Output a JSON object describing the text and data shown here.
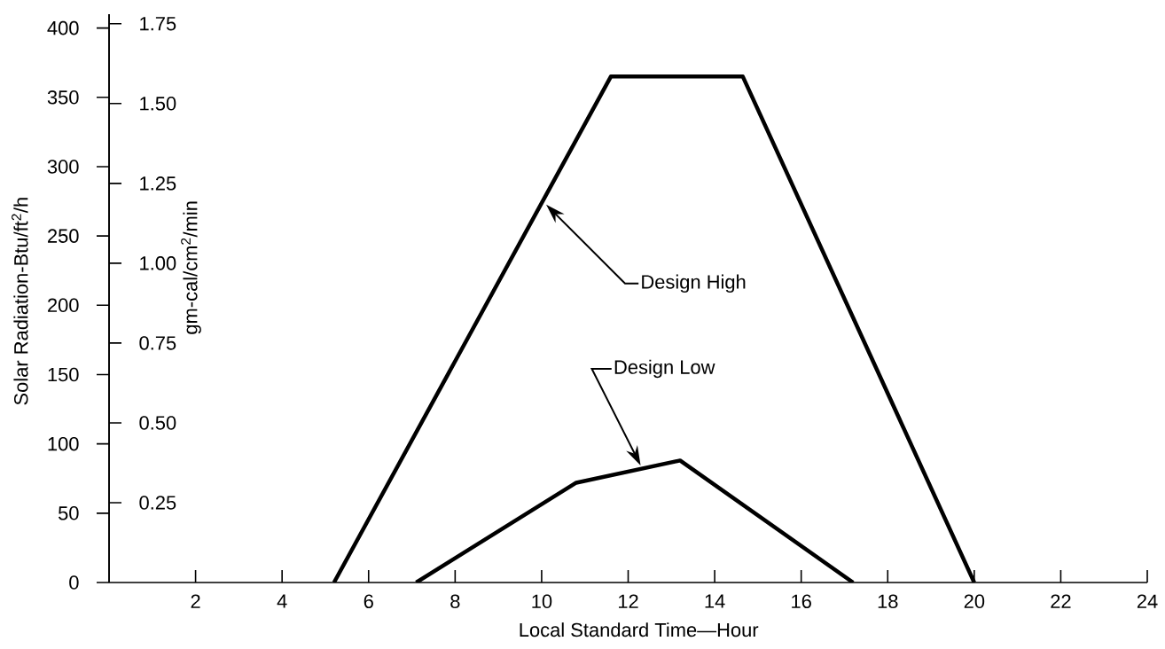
{
  "chart_data": {
    "type": "line",
    "xlabel": "Local Standard Time—Hour",
    "ylabel": "Solar Radiation-Btu/ft$^{2}$/h",
    "y2label": "gm-cal/cm$^{2}$/min",
    "xlim": [
      0,
      24
    ],
    "xticks": [
      2,
      4,
      6,
      8,
      10,
      12,
      14,
      16,
      18,
      20,
      22,
      24
    ],
    "ylim": [
      0,
      410
    ],
    "yticks": [
      0,
      50,
      100,
      150,
      200,
      250,
      300,
      350,
      400
    ],
    "y2lim": [
      0,
      1.78
    ],
    "y2ticks": [
      0.25,
      {
        "value": 0.5,
        "label": "0.50"
      },
      0.75,
      {
        "value": 1.0,
        "label": "1.00"
      },
      1.25,
      {
        "value": 1.5,
        "label": "1.50"
      },
      1.75
    ],
    "line_style": "solid",
    "series": [
      {
        "color": "#000000",
        "x": [
          5.2,
          11.6,
          14.65,
          20
        ],
        "values": [
          0,
          365,
          365,
          0
        ]
      },
      {
        "color": "#000000",
        "x": [
          7.1,
          10.8,
          13.2,
          17.2
        ],
        "values": [
          0,
          72,
          88,
          0
        ]
      }
    ],
    "annotations": [
      "Design High",
      "Design Low"
    ]
  }
}
